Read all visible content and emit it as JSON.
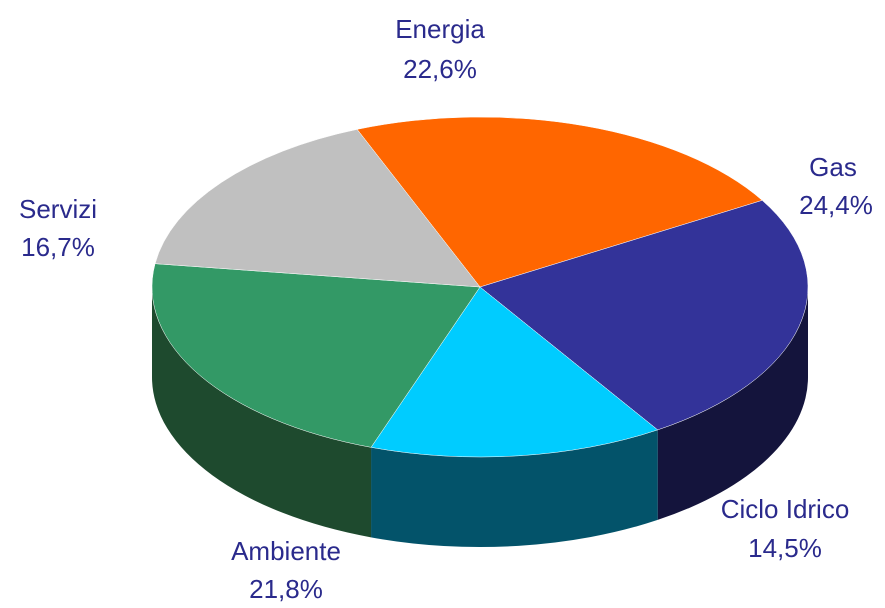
{
  "chart_data": {
    "type": "pie",
    "style": "3d",
    "slices": [
      {
        "label": "Energia",
        "value": 22.6,
        "value_text": "22,6%",
        "color": "#FF6600",
        "side": "#B34700"
      },
      {
        "label": "Gas",
        "value": 24.4,
        "value_text": "24,4%",
        "color": "#333399",
        "side": "#14143C"
      },
      {
        "label": "Ciclo Idrico",
        "value": 14.5,
        "value_text": "14,5%",
        "color": "#00CCFF",
        "side": "#03536A"
      },
      {
        "label": "Ambiente",
        "value": 21.8,
        "value_text": "21,8%",
        "color": "#339966",
        "side": "#1E4A2E"
      },
      {
        "label": "Servizi",
        "value": 16.7,
        "value_text": "16,7%",
        "color": "#C0C0C0",
        "side": "#7A7A7A"
      }
    ]
  }
}
